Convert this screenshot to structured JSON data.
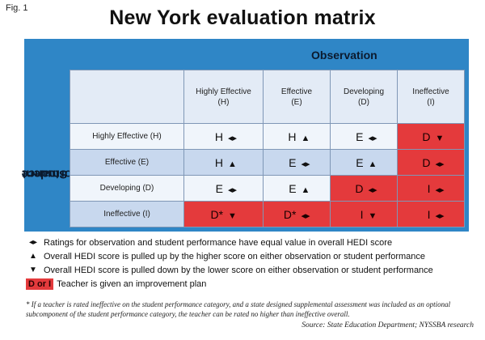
{
  "fig_label": "Fig. 1",
  "title": "New York evaluation matrix",
  "observation_label": "Observation",
  "student_performance_label_1": "Student",
  "student_performance_label_2": "Performance",
  "columns": [
    {
      "line1": "Highly Effective",
      "line2": "(H)"
    },
    {
      "line1": "Effective",
      "line2": "(E)"
    },
    {
      "line1": "Developing",
      "line2": "(D)"
    },
    {
      "line1": "Ineffective",
      "line2": "(I)"
    }
  ],
  "rows": [
    {
      "label": "Highly Effective (H)",
      "cells": [
        {
          "rating": "H",
          "symbol": "◂▸",
          "plan": false
        },
        {
          "rating": "H",
          "symbol": "▲",
          "plan": false
        },
        {
          "rating": "E",
          "symbol": "◂▸",
          "plan": false
        },
        {
          "rating": "D",
          "symbol": "▼",
          "plan": true
        }
      ]
    },
    {
      "label": "Effective (E)",
      "cells": [
        {
          "rating": "H",
          "symbol": "▲",
          "plan": false
        },
        {
          "rating": "E",
          "symbol": "◂▸",
          "plan": false
        },
        {
          "rating": "E",
          "symbol": "▲",
          "plan": false
        },
        {
          "rating": "D",
          "symbol": "◂▸",
          "plan": true
        }
      ]
    },
    {
      "label": "Developing (D)",
      "cells": [
        {
          "rating": "E",
          "symbol": "◂▸",
          "plan": false
        },
        {
          "rating": "E",
          "symbol": "▲",
          "plan": false
        },
        {
          "rating": "D",
          "symbol": "◂▸",
          "plan": true
        },
        {
          "rating": "I",
          "symbol": "◂▸",
          "plan": true
        }
      ]
    },
    {
      "label": "Ineffective (I)",
      "cells": [
        {
          "rating": "D*",
          "symbol": "▼",
          "plan": true
        },
        {
          "rating": "D*",
          "symbol": "◂▸",
          "plan": true
        },
        {
          "rating": "I",
          "symbol": "▼",
          "plan": true
        },
        {
          "rating": "I",
          "symbol": "◂▸",
          "plan": true
        }
      ]
    }
  ],
  "legend": {
    "equal_symbol": "◂▸",
    "equal_text": "Ratings for observation and student performance have equal value in overall HEDI score",
    "up_symbol": "▲",
    "up_text": "Overall HEDI score is pulled up by the higher score on either observation or student performance",
    "down_symbol": "▼",
    "down_text": "Overall HEDI score is pulled down by the lower score on either observation or student performance",
    "plan_box": "D or I",
    "plan_text": "Teacher is given an improvement plan"
  },
  "footnote": "* If a teacher is rated ineffective on the student performance category, and a state designed supplemental assessment was included as an optional subcomponent of the student performance category, the teacher can be rated no higher than ineffective overall.",
  "source": "Source: State Education Department; NYSSBA research",
  "colors": {
    "frame_blue": "#2f86c6",
    "plan_red": "#e43a3c",
    "header_fill": "#e3ebf6",
    "row_fill": "#c8d8ee"
  }
}
